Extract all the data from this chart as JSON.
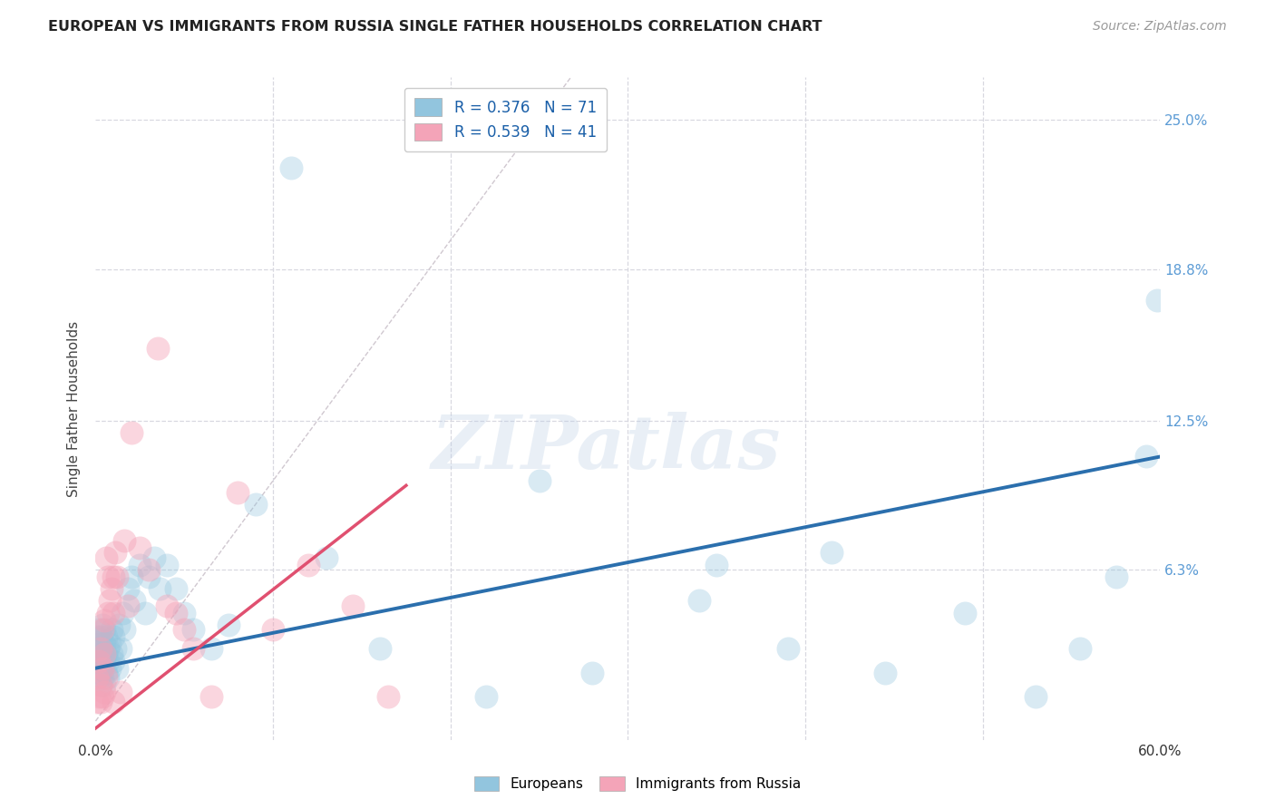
{
  "title": "EUROPEAN VS IMMIGRANTS FROM RUSSIA SINGLE FATHER HOUSEHOLDS CORRELATION CHART",
  "source": "Source: ZipAtlas.com",
  "ylabel": "Single Father Households",
  "ytick_labels": [
    "25.0%",
    "18.8%",
    "12.5%",
    "6.3%"
  ],
  "ytick_values": [
    0.25,
    0.188,
    0.125,
    0.063
  ],
  "xlim": [
    0.0,
    0.6
  ],
  "ylim": [
    -0.008,
    0.268
  ],
  "watermark": "ZIPatlas",
  "legend_r1": "R = 0.376",
  "legend_n1": "N = 71",
  "legend_r2": "R = 0.539",
  "legend_n2": "N = 41",
  "blue_scatter_x": [
    0.001,
    0.001,
    0.001,
    0.002,
    0.002,
    0.002,
    0.002,
    0.002,
    0.003,
    0.003,
    0.003,
    0.003,
    0.003,
    0.004,
    0.004,
    0.004,
    0.004,
    0.005,
    0.005,
    0.005,
    0.005,
    0.006,
    0.006,
    0.006,
    0.007,
    0.007,
    0.007,
    0.008,
    0.008,
    0.009,
    0.009,
    0.01,
    0.01,
    0.011,
    0.012,
    0.013,
    0.014,
    0.015,
    0.016,
    0.018,
    0.02,
    0.022,
    0.025,
    0.028,
    0.03,
    0.033,
    0.036,
    0.04,
    0.045,
    0.05,
    0.055,
    0.065,
    0.075,
    0.09,
    0.11,
    0.13,
    0.16,
    0.22,
    0.28,
    0.34,
    0.39,
    0.445,
    0.49,
    0.53,
    0.555,
    0.575,
    0.592,
    0.598,
    0.35,
    0.415,
    0.25
  ],
  "blue_scatter_y": [
    0.03,
    0.025,
    0.035,
    0.022,
    0.028,
    0.018,
    0.032,
    0.038,
    0.02,
    0.03,
    0.025,
    0.015,
    0.035,
    0.022,
    0.028,
    0.018,
    0.04,
    0.025,
    0.032,
    0.015,
    0.038,
    0.02,
    0.028,
    0.035,
    0.025,
    0.03,
    0.018,
    0.032,
    0.022,
    0.028,
    0.038,
    0.025,
    0.035,
    0.03,
    0.022,
    0.04,
    0.03,
    0.045,
    0.038,
    0.055,
    0.06,
    0.05,
    0.065,
    0.045,
    0.06,
    0.068,
    0.055,
    0.065,
    0.055,
    0.045,
    0.038,
    0.03,
    0.04,
    0.09,
    0.23,
    0.068,
    0.03,
    0.01,
    0.02,
    0.05,
    0.03,
    0.02,
    0.045,
    0.01,
    0.03,
    0.06,
    0.11,
    0.175,
    0.065,
    0.07,
    0.1
  ],
  "pink_scatter_x": [
    0.001,
    0.001,
    0.002,
    0.002,
    0.003,
    0.003,
    0.003,
    0.004,
    0.004,
    0.004,
    0.005,
    0.005,
    0.005,
    0.006,
    0.006,
    0.007,
    0.007,
    0.008,
    0.009,
    0.01,
    0.01,
    0.011,
    0.012,
    0.014,
    0.016,
    0.018,
    0.02,
    0.025,
    0.03,
    0.035,
    0.04,
    0.045,
    0.05,
    0.055,
    0.065,
    0.08,
    0.1,
    0.12,
    0.145,
    0.165,
    0.01
  ],
  "pink_scatter_y": [
    0.008,
    0.018,
    0.01,
    0.025,
    0.008,
    0.015,
    0.03,
    0.01,
    0.022,
    0.038,
    0.028,
    0.012,
    0.042,
    0.018,
    0.068,
    0.045,
    0.06,
    0.05,
    0.055,
    0.06,
    0.045,
    0.07,
    0.06,
    0.012,
    0.075,
    0.048,
    0.12,
    0.072,
    0.063,
    0.155,
    0.048,
    0.045,
    0.038,
    0.03,
    0.01,
    0.095,
    0.038,
    0.065,
    0.048,
    0.01,
    0.008
  ],
  "blue_line_x": [
    0.0,
    0.6
  ],
  "blue_line_y": [
    0.022,
    0.11
  ],
  "pink_line_x": [
    0.0,
    0.175
  ],
  "pink_line_y": [
    -0.003,
    0.098
  ],
  "diagonal_line_x": [
    0.0,
    0.268
  ],
  "diagonal_line_y": [
    0.0,
    0.268
  ],
  "blue_color": "#92c5de",
  "pink_color": "#f4a4b8",
  "blue_line_color": "#2b6fad",
  "pink_line_color": "#e05070",
  "diagonal_color": "#d0c8d0",
  "grid_color": "#d8d8e0",
  "background_color": "#ffffff",
  "title_color": "#222222",
  "axis_label_color": "#444444",
  "right_tick_color": "#5b9bd5"
}
